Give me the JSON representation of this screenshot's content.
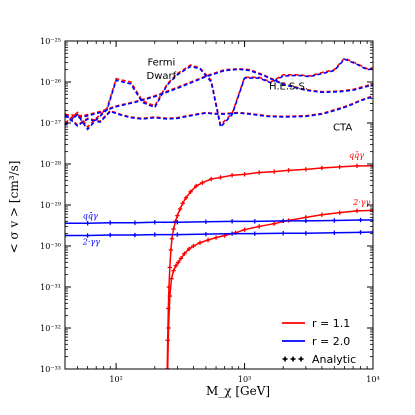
{
  "chart_data": {
    "type": "line",
    "xlabel": "M_χ [GeV]",
    "ylabel": "< σ v > [cm³/s]",
    "xscale": "log",
    "yscale": "log",
    "xlim": [
      40,
      10000
    ],
    "ylim": [
      1e-33,
      1e-25
    ],
    "x_ticks": [
      {
        "value": 100,
        "label": "10²"
      },
      {
        "value": 1000,
        "label": "10³"
      },
      {
        "value": 10000,
        "label": "10⁴"
      }
    ],
    "y_ticks": [
      {
        "value": 1e-25,
        "label": "10⁻²⁵"
      },
      {
        "value": 1e-26,
        "label": "10⁻²⁶"
      },
      {
        "value": 1e-27,
        "label": "10⁻²⁷"
      },
      {
        "value": 1e-28,
        "label": "10⁻²⁸"
      },
      {
        "value": 1e-29,
        "label": "10⁻²⁹"
      },
      {
        "value": 1e-30,
        "label": "10⁻³⁰"
      },
      {
        "value": 1e-31,
        "label": "10⁻³¹"
      },
      {
        "value": 1e-32,
        "label": "10⁻³²"
      },
      {
        "value": 1e-33,
        "label": "10⁻³³"
      }
    ],
    "colors": {
      "red": "#ff0000",
      "blue": "#0000ff"
    },
    "annotations": [
      {
        "text": "Fermi",
        "x": 225,
        "y": 2.5e-26
      },
      {
        "text": "Dwarf",
        "x": 225,
        "y": 1.2e-26
      },
      {
        "text": "H.E.S.S.",
        "x": 2200,
        "y": 6.5e-27
      },
      {
        "text": "CTA",
        "x": 5800,
        "y": 6.5e-28
      },
      {
        "text": "qq̄γ",
        "x": 6500,
        "y": 1.4e-28,
        "color": "red"
      },
      {
        "text": "2·γγ",
        "x": 7000,
        "y": 1e-29,
        "color": "red"
      },
      {
        "text": "qq̄γ",
        "x": 55,
        "y": 4.7e-30,
        "color": "blue"
      },
      {
        "text": "2·γγ",
        "x": 55,
        "y": 1.1e-30,
        "color": "blue"
      }
    ],
    "legend": {
      "placement": "bottom-right",
      "entries": [
        {
          "label": "r = 1.1",
          "color": "red",
          "style": "solid"
        },
        {
          "label": "r = 2.0",
          "color": "blue",
          "style": "solid"
        },
        {
          "label": "Analytic",
          "color": "black",
          "style": "plus-markers"
        }
      ]
    },
    "series": [
      {
        "color": "red",
        "style": "dashed",
        "x": [
          40,
          55,
          75,
          100,
          140,
          200,
          300,
          500,
          700,
          900,
          1100,
          1400,
          2000,
          3000,
          4000,
          5500,
          7000,
          10000
        ],
        "y": [
          1.6e-27,
          1.5e-27,
          1.9e-27,
          2.6e-27,
          3.3e-27,
          4.6e-27,
          7.4e-27,
          1.4e-26,
          2e-26,
          2.1e-26,
          2e-26,
          1.5e-26,
          9e-27,
          6.5e-27,
          5.8e-27,
          6e-27,
          6.6e-27,
          9e-27
        ]
      },
      {
        "color": "blue",
        "style": "dashed",
        "x": [
          40,
          55,
          75,
          100,
          140,
          200,
          300,
          500,
          700,
          900,
          1100,
          1400,
          2000,
          3000,
          4000,
          5500,
          7000,
          10000
        ],
        "y": [
          1.4e-27,
          1.4e-27,
          1.8e-27,
          2.5e-27,
          3.2e-27,
          4.4e-27,
          7e-27,
          1.35e-26,
          1.9e-26,
          2.05e-26,
          1.9e-26,
          1.45e-26,
          8.7e-27,
          6.3e-27,
          5.6e-27,
          5.8e-27,
          6.3e-27,
          8.5e-27
        ]
      },
      {
        "color": "red",
        "style": "dashed",
        "x": [
          40,
          50,
          60,
          70,
          85,
          100,
          130,
          160,
          200,
          250,
          300,
          380,
          450,
          550,
          650,
          800,
          1000,
          1300,
          1600,
          2000,
          2600,
          3200,
          4000,
          5000,
          6000,
          7500,
          9000,
          10000
        ],
        "y": [
          1e-27,
          1.8e-27,
          8e-28,
          1.3e-27,
          2.3e-27,
          1.2e-26,
          1e-26,
          3.5e-27,
          2.6e-27,
          9e-27,
          1.6e-26,
          2.6e-26,
          2.2e-26,
          1.1e-26,
          9e-28,
          1.7e-27,
          1.3e-26,
          1.3e-26,
          1e-26,
          1.5e-26,
          1.5e-26,
          1.4e-26,
          1.7e-26,
          2e-26,
          3.8e-26,
          2.8e-26,
          2.1e-26,
          2.2e-26
        ]
      },
      {
        "color": "blue",
        "style": "dashed",
        "x": [
          40,
          50,
          60,
          70,
          85,
          100,
          130,
          160,
          200,
          250,
          300,
          380,
          450,
          550,
          650,
          800,
          1000,
          1300,
          1600,
          2000,
          2600,
          3200,
          4000,
          5000,
          6000,
          7500,
          9000,
          10000
        ],
        "y": [
          9e-28,
          1.6e-27,
          7e-28,
          1.2e-27,
          2.1e-27,
          1.1e-26,
          9e-27,
          3.2e-27,
          2.4e-27,
          8.5e-27,
          1.5e-26,
          2.4e-26,
          2.1e-26,
          1e-26,
          8e-28,
          1.6e-27,
          1.25e-26,
          1.25e-26,
          9.5e-27,
          1.4e-26,
          1.45e-26,
          1.35e-26,
          1.6e-26,
          1.9e-26,
          3.6e-26,
          2.7e-26,
          2e-26,
          2.1e-26
        ]
      },
      {
        "color": "red",
        "style": "dashed",
        "x": [
          40,
          50,
          60,
          75,
          90,
          110,
          130,
          160,
          200,
          250,
          300,
          400,
          500,
          600,
          700,
          900,
          1100,
          1500,
          2000,
          3000,
          4000,
          5000,
          6000,
          7000,
          8000,
          10000
        ],
        "y": [
          1.7e-27,
          9e-28,
          1.3e-27,
          1.1e-27,
          2e-27,
          1.6e-27,
          1.4e-27,
          1.3e-27,
          1.4e-27,
          1.3e-27,
          1.35e-27,
          1.6e-27,
          1.8e-27,
          1.7e-27,
          1.7e-27,
          1.8e-27,
          1.7e-27,
          1.5e-27,
          1.45e-27,
          1.5e-27,
          1.7e-27,
          2.1e-27,
          2.5e-27,
          3e-27,
          3.6e-27,
          4.6e-27
        ]
      },
      {
        "color": "blue",
        "style": "dashed",
        "x": [
          40,
          50,
          60,
          75,
          90,
          110,
          130,
          160,
          200,
          250,
          300,
          400,
          500,
          600,
          700,
          900,
          1100,
          1500,
          2000,
          3000,
          4000,
          5000,
          6000,
          7000,
          8000,
          10000
        ],
        "y": [
          1.6e-27,
          8.5e-28,
          1.25e-27,
          1.05e-27,
          1.9e-27,
          1.55e-27,
          1.35e-27,
          1.25e-27,
          1.35e-27,
          1.25e-27,
          1.3e-27,
          1.55e-27,
          1.75e-27,
          1.65e-27,
          1.65e-27,
          1.75e-27,
          1.65e-27,
          1.45e-27,
          1.4e-27,
          1.45e-27,
          1.65e-27,
          2e-27,
          2.4e-27,
          2.9e-27,
          3.5e-27,
          4.4e-27
        ]
      },
      {
        "color": "red",
        "style": "solid",
        "markers": true,
        "x": [
          250,
          252,
          255,
          258,
          262,
          267,
          272,
          280,
          290,
          300,
          315,
          330,
          350,
          380,
          420,
          470,
          550,
          650,
          800,
          1000,
          1300,
          1700,
          2200,
          3000,
          4000,
          5500,
          7500,
          10000
        ],
        "y": [
          1e-33,
          5e-33,
          3e-32,
          1e-31,
          3e-31,
          8e-31,
          1.5e-30,
          2.6e-30,
          4e-30,
          5.5e-30,
          8e-30,
          1.1e-29,
          1.5e-29,
          2.1e-29,
          2.9e-29,
          3.5e-29,
          4.3e-29,
          4.7e-29,
          5.3e-29,
          5.6e-29,
          6.2e-29,
          6.5e-29,
          7e-29,
          7.4e-29,
          8e-29,
          8.5e-29,
          9e-29,
          9e-29
        ]
      },
      {
        "color": "red",
        "style": "solid",
        "markers": true,
        "x": [
          252,
          256,
          262,
          270,
          280,
          292,
          305,
          320,
          340,
          370,
          400,
          450,
          520,
          600,
          700,
          850,
          1000,
          1300,
          1700,
          2200,
          3000,
          4000,
          5500,
          7500,
          10000
        ],
        "y": [
          1e-33,
          1e-32,
          6e-32,
          1.6e-31,
          2.5e-31,
          3.3e-31,
          4e-31,
          5e-31,
          6.5e-31,
          8.5e-31,
          1e-30,
          1.2e-30,
          1.4e-30,
          1.6e-30,
          1.8e-30,
          2.1e-30,
          2.5e-30,
          3e-30,
          3.5e-30,
          4.2e-30,
          5e-30,
          5.8e-30,
          6.5e-30,
          7.2e-30,
          7.4e-30
        ]
      },
      {
        "color": "blue",
        "style": "solid",
        "markers": true,
        "x": [
          40,
          60,
          90,
          140,
          200,
          300,
          500,
          800,
          1200,
          2000,
          3000,
          5000,
          8000,
          10000
        ],
        "y": [
          3.6e-30,
          3.6e-30,
          3.7e-30,
          3.7e-30,
          3.8e-30,
          3.8e-30,
          3.9e-30,
          4e-30,
          4e-30,
          4.1e-30,
          4.1e-30,
          4.2e-30,
          4.3e-30,
          4.3e-30
        ]
      },
      {
        "color": "blue",
        "style": "solid",
        "markers": true,
        "x": [
          40,
          60,
          90,
          140,
          200,
          300,
          500,
          800,
          1200,
          2000,
          3000,
          5000,
          8000,
          10000
        ],
        "y": [
          1.8e-30,
          1.8e-30,
          1.85e-30,
          1.85e-30,
          1.9e-30,
          1.9e-30,
          1.95e-30,
          2e-30,
          2e-30,
          2.05e-30,
          2.05e-30,
          2.1e-30,
          2.15e-30,
          2.2e-30
        ]
      }
    ]
  }
}
